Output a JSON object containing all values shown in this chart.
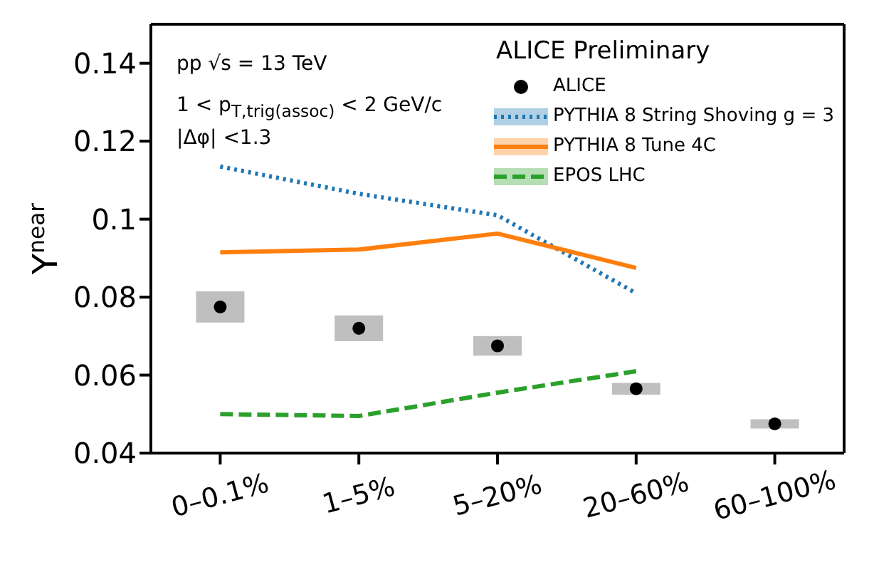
{
  "chart_data": {
    "type": "line",
    "ylabel": "Y$^{near}$",
    "legend_title": "ALICE Preliminary",
    "annotations": [
      "pp √s = 13 TeV",
      "1 < p$_{T,trig(assoc)}$ < 2 GeV/c",
      "|Δφ| <1.3"
    ],
    "categories": [
      "0–0.1%",
      "1–5%",
      "5–20%",
      "20–60%",
      "60–100%"
    ],
    "series": [
      {
        "name": "ALICE",
        "type": "scatter",
        "color": "#000000",
        "marker": "circle",
        "values": [
          0.0775,
          0.072,
          0.0675,
          0.0565,
          0.0475
        ],
        "errors": [
          0.004,
          0.0033,
          0.0025,
          0.0015,
          0.0012
        ]
      },
      {
        "name": "PYTHIA 8 String Shoving g = 3",
        "color": "#1f77b4",
        "line_style": "dotted",
        "values": [
          0.1135,
          0.1065,
          0.101,
          0.081,
          null
        ]
      },
      {
        "name": "PYTHIA 8 Tune 4C",
        "color": "#ff7f0e",
        "line_style": "solid",
        "values": [
          0.0915,
          0.0922,
          0.0963,
          0.0875,
          null
        ]
      },
      {
        "name": "EPOS LHC",
        "color": "#2ca02c",
        "line_style": "dashed",
        "values": [
          0.05,
          0.0495,
          0.0555,
          0.061,
          null
        ]
      }
    ],
    "ylim": [
      0.04,
      0.15
    ],
    "yticks": [
      0.04,
      0.06,
      0.08,
      0.1,
      0.12,
      0.14
    ],
    "legend": "top right"
  }
}
